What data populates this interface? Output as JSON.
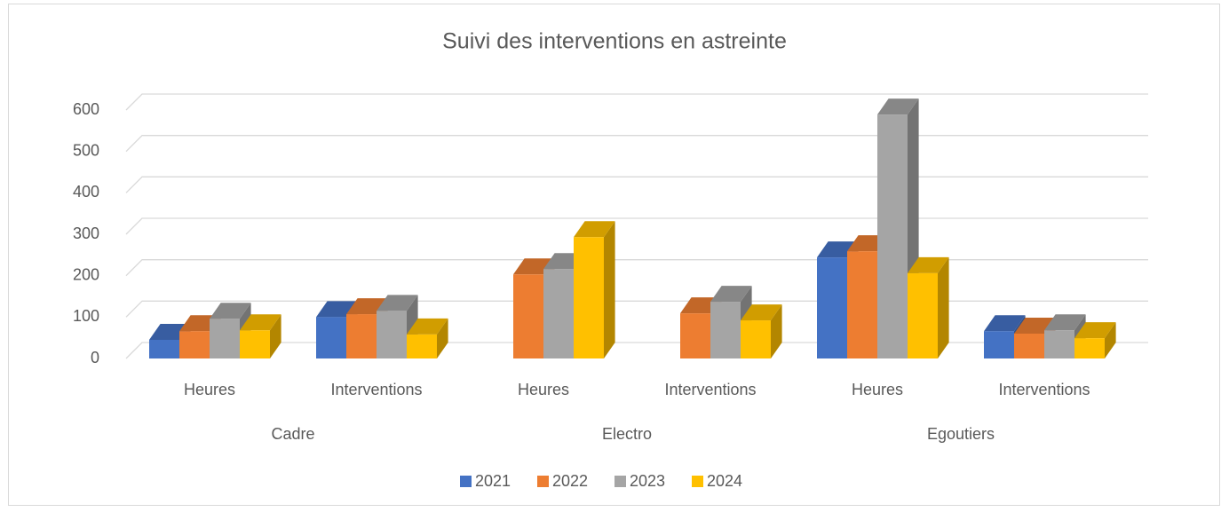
{
  "chart_data": {
    "type": "bar3d",
    "title": "Suivi des interventions en astreinte",
    "categories": [
      "Heures",
      "Interventions",
      "Heures",
      "Interventions",
      "Heures",
      "Interventions"
    ],
    "category_groups": [
      "Cadre",
      "Electro",
      "Egoutiers"
    ],
    "series": [
      {
        "name": "2021",
        "color": "#4472c4",
        "values": [
          45,
          100,
          null,
          null,
          244,
          66
        ]
      },
      {
        "name": "2022",
        "color": "#ed7d31",
        "values": [
          66,
          107,
          203,
          109,
          259,
          60
        ]
      },
      {
        "name": "2023",
        "color": "#a5a5a5",
        "values": [
          96,
          115,
          216,
          137,
          589,
          68
        ]
      },
      {
        "name": "2024",
        "color": "#ffc000",
        "values": [
          68,
          58,
          293,
          92,
          206,
          49
        ]
      }
    ],
    "ylim": [
      0,
      600
    ],
    "yticks": [
      0,
      100,
      200,
      300,
      400,
      500,
      600
    ],
    "grid": true,
    "legend": "bottom"
  }
}
